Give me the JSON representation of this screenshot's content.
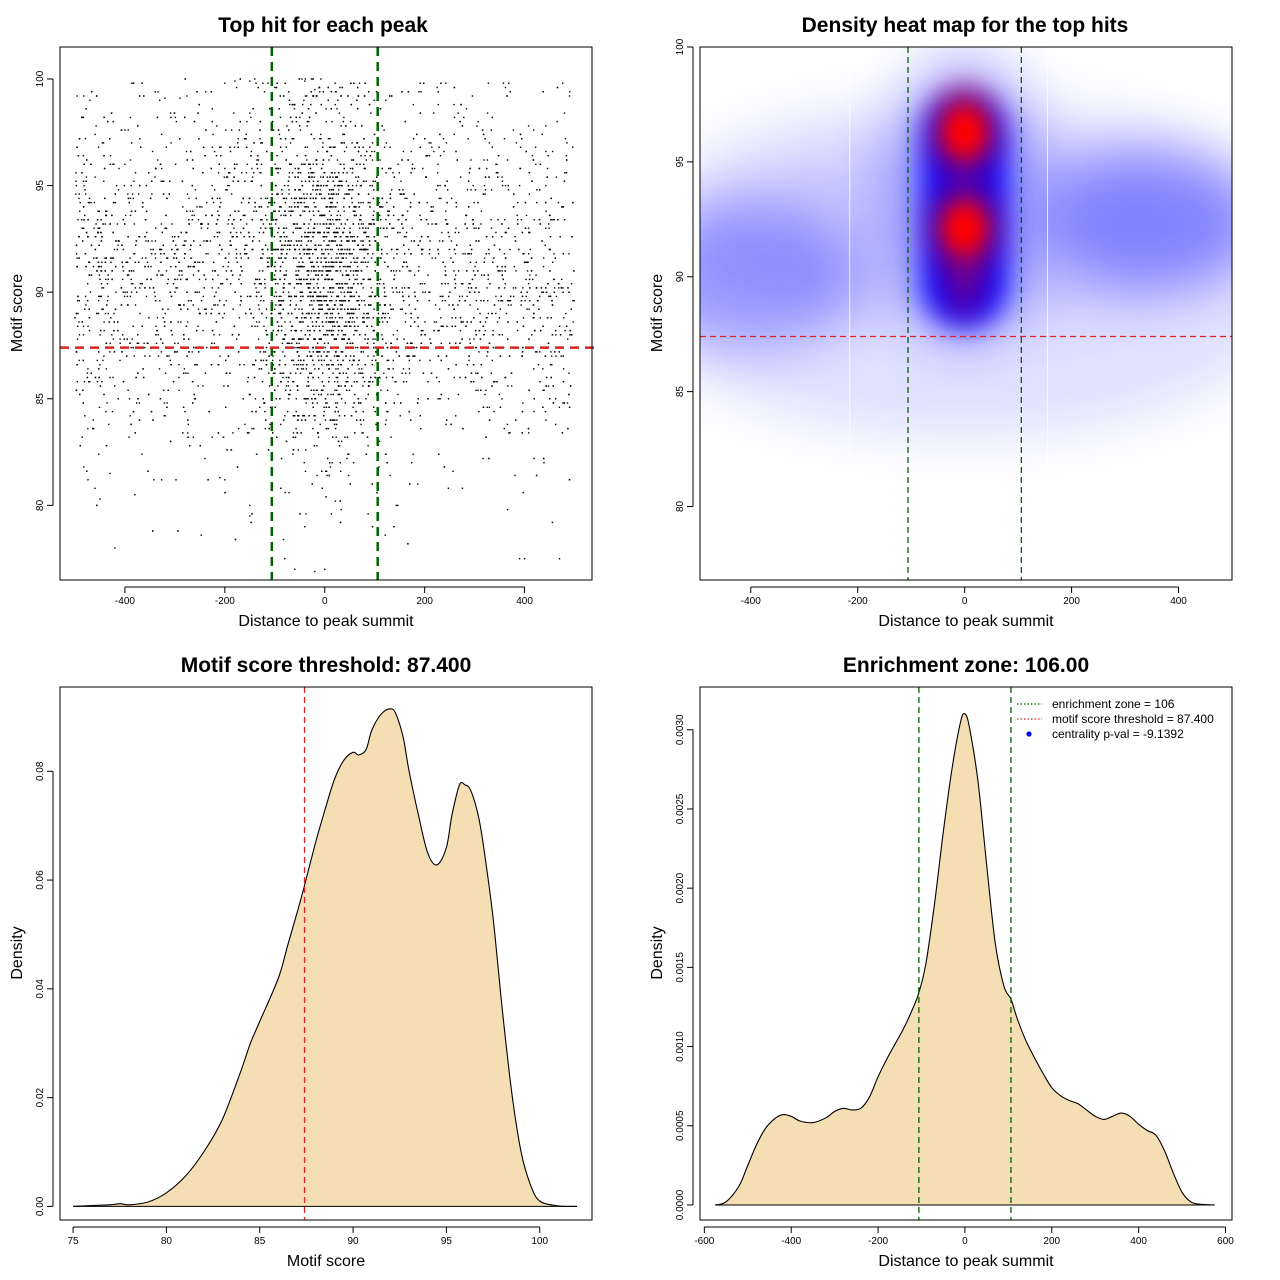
{
  "chart_data": [
    {
      "type": "scatter",
      "title": "Top hit for each peak",
      "xlabel": "Distance to peak summit",
      "ylabel": "Motif score",
      "xlim": [
        -530,
        535
      ],
      "ylim": [
        76.5,
        101.5
      ],
      "xticks": [
        -400,
        -200,
        0,
        200,
        400
      ],
      "yticks": [
        80,
        85,
        90,
        95,
        100
      ],
      "vlines": [
        -106,
        106
      ],
      "vline_color": "#006400",
      "hline": 87.4,
      "hline_color": "#dd2222",
      "point_color": "#000000",
      "points": [
        [
          -420,
          78
        ],
        [
          -60,
          77
        ],
        [
          -80,
          77.5
        ],
        [
          -20,
          76.9
        ],
        [
          0,
          77
        ],
        [
          390,
          77.5
        ],
        [
          400,
          77.5
        ],
        [
          470,
          77.5
        ],
        [
          -150,
          79.5
        ],
        [
          -150,
          80
        ],
        [
          -380,
          80.5
        ],
        [
          -450,
          80.3
        ],
        [
          -460,
          80.8
        ],
        [
          -430,
          81.5
        ],
        [
          -200,
          81.2
        ],
        [
          -210,
          81.3
        ],
        [
          -180,
          99.9
        ],
        [
          -150,
          99.9
        ],
        [
          -140,
          100
        ],
        [
          -200,
          99.8
        ],
        [
          -40,
          99.9
        ],
        [
          -20,
          99.5
        ],
        [
          490,
          99.2
        ],
        [
          -470,
          99
        ],
        [
          -320,
          99.1
        ],
        [
          -290,
          99.1
        ]
      ],
      "density_points": {
        "count": 5500,
        "x_center": 0,
        "x_range": [
          -500,
          500
        ],
        "y_mean": 90.8,
        "y_sd": 4.2,
        "y_range": [
          78,
          100
        ]
      }
    },
    {
      "type": "heatmap",
      "title": "Density heat map for the top hits",
      "xlabel": "Distance to peak summit",
      "ylabel": "Motif score",
      "xlim": [
        -495,
        500
      ],
      "ylim": [
        76.8,
        100
      ],
      "xticks": [
        -400,
        -200,
        0,
        200,
        400
      ],
      "yticks": [
        80,
        85,
        90,
        95,
        100
      ],
      "vlines": [
        -106,
        106
      ],
      "vline_color": "#006400",
      "hline": 87.4,
      "hline_color": "#dd2222",
      "colors": [
        "#ffffff",
        "#0000ff",
        "#ff0000"
      ],
      "hotspots": [
        {
          "x": 0,
          "y": 96.3,
          "level": 1.0
        },
        {
          "x": 0,
          "y": 92.1,
          "level": 1.0
        },
        {
          "x": 0,
          "y": 89.5,
          "level": 0.7
        },
        {
          "x": 350,
          "y": 92.5,
          "level": 0.35
        },
        {
          "x": -400,
          "y": 90.0,
          "level": 0.3
        }
      ]
    },
    {
      "type": "area",
      "title": "Motif score threshold: 87.400",
      "xlabel": "Motif score",
      "ylabel": "Density",
      "xlim": [
        74.3,
        102.8
      ],
      "ylim": [
        -0.0025,
        0.0955
      ],
      "xticks": [
        75,
        80,
        85,
        90,
        95,
        100
      ],
      "yticks": [
        0.0,
        0.02,
        0.04,
        0.06,
        0.08
      ],
      "ytick_labels": [
        "0.00",
        "0.02",
        "0.04",
        "0.06",
        "0.08"
      ],
      "vline": 87.4,
      "vline_color": "#dd2222",
      "fill_color": "#f5deb3",
      "x": [
        75,
        77,
        77.5,
        78,
        79,
        80,
        81,
        82,
        83,
        84,
        84.5,
        85,
        86,
        86.5,
        87,
        87.4,
        88,
        88.5,
        89,
        89.5,
        90,
        90.3,
        90.7,
        91,
        91.5,
        92,
        92.3,
        92.7,
        93,
        93.5,
        94,
        94.5,
        95,
        95.3,
        95.7,
        96,
        96.3,
        96.7,
        97,
        97.5,
        98,
        98.5,
        99,
        99.5,
        100,
        101,
        102
      ],
      "y": [
        0.0,
        0.0003,
        0.0005,
        0.0003,
        0.0008,
        0.0025,
        0.0055,
        0.01,
        0.016,
        0.025,
        0.03,
        0.034,
        0.042,
        0.048,
        0.054,
        0.059,
        0.067,
        0.073,
        0.0785,
        0.082,
        0.0835,
        0.083,
        0.084,
        0.0875,
        0.0905,
        0.0915,
        0.0905,
        0.086,
        0.08,
        0.072,
        0.065,
        0.0628,
        0.066,
        0.072,
        0.0775,
        0.0775,
        0.0765,
        0.072,
        0.066,
        0.053,
        0.036,
        0.021,
        0.01,
        0.004,
        0.001,
        0.0001,
        0.0
      ]
    },
    {
      "type": "area",
      "title": "Enrichment zone: 106.00",
      "xlabel": "Distance to peak summit",
      "ylabel": "Density",
      "xlim": [
        -610,
        615
      ],
      "ylim": [
        -9.5e-05,
        0.00327
      ],
      "xticks": [
        -600,
        -400,
        -200,
        0,
        200,
        400,
        600
      ],
      "yticks": [
        0.0,
        0.0005,
        0.001,
        0.0015,
        0.002,
        0.0025,
        0.003
      ],
      "ytick_labels": [
        "0.0000",
        "0.0005",
        "0.0010",
        "0.0015",
        "0.0020",
        "0.0025",
        "0.0030"
      ],
      "vlines": [
        -106,
        106
      ],
      "vline_color": "#006400",
      "fill_color": "#f5deb3",
      "x": [
        -575,
        -550,
        -520,
        -500,
        -480,
        -460,
        -440,
        -420,
        -400,
        -380,
        -350,
        -320,
        -300,
        -280,
        -260,
        -240,
        -220,
        -200,
        -180,
        -160,
        -140,
        -120,
        -106,
        -90,
        -70,
        -50,
        -30,
        -10,
        0,
        10,
        30,
        50,
        70,
        90,
        106,
        120,
        140,
        160,
        180,
        200,
        220,
        240,
        260,
        280,
        300,
        320,
        340,
        360,
        380,
        400,
        420,
        440,
        460,
        480,
        500,
        520,
        540,
        575
      ],
      "y": [
        0.0,
        2e-05,
        0.00012,
        0.00025,
        0.00038,
        0.00048,
        0.00054,
        0.00057,
        0.00056,
        0.00053,
        0.00052,
        0.00055,
        0.00059,
        0.00061,
        0.0006,
        0.00061,
        0.00068,
        0.00081,
        0.00092,
        0.00102,
        0.00112,
        0.00124,
        0.00134,
        0.00152,
        0.0019,
        0.00235,
        0.00275,
        0.00305,
        0.0031,
        0.00302,
        0.00268,
        0.00215,
        0.00165,
        0.00138,
        0.0013,
        0.00118,
        0.00104,
        0.00093,
        0.00083,
        0.00074,
        0.00069,
        0.00066,
        0.00064,
        0.0006,
        0.00056,
        0.00054,
        0.00056,
        0.00058,
        0.00056,
        0.00051,
        0.00047,
        0.00044,
        0.00034,
        0.0002,
        8e-05,
        2e-05,
        5e-06,
        0.0
      ],
      "legend": [
        {
          "label": "enrichment zone = 106",
          "style": "dotted",
          "color": "#006400"
        },
        {
          "label": "motif score threshold = 87.400",
          "style": "dotted",
          "color": "#dd2222"
        },
        {
          "label": "centrality p-val = -9.1392",
          "style": "point",
          "color": "#0000ff"
        }
      ],
      "legend_position": "top-right"
    }
  ]
}
